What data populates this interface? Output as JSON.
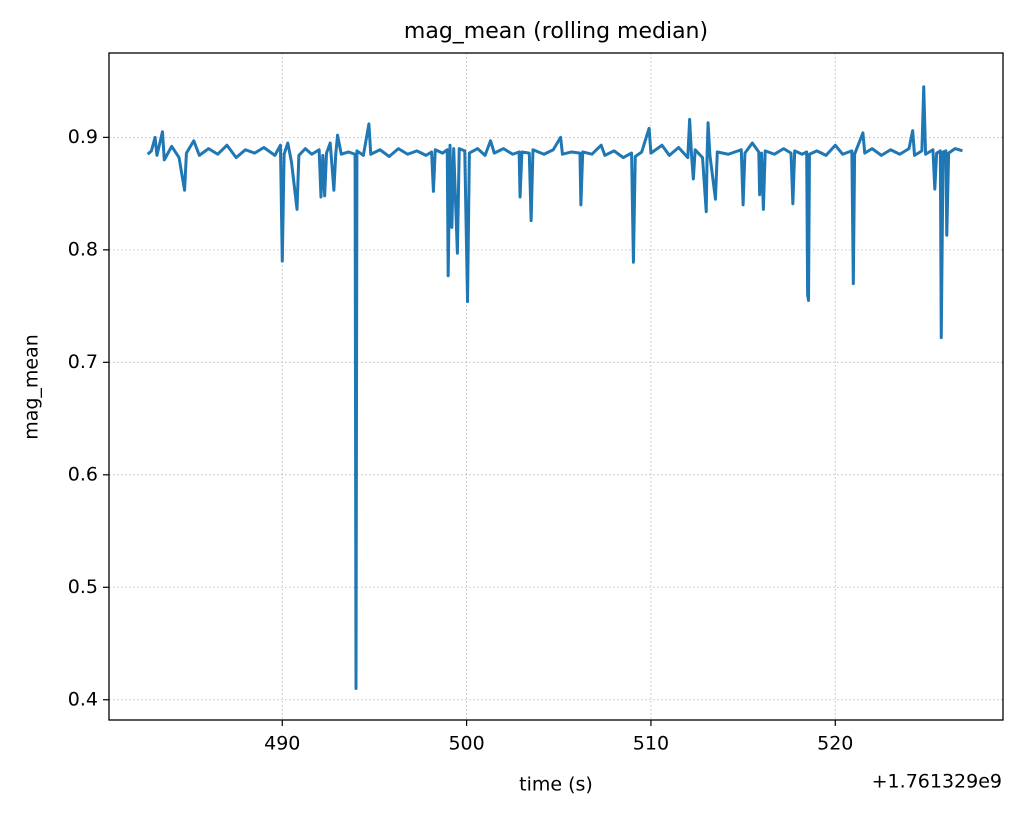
{
  "chart_data": {
    "type": "line",
    "title": "mag_mean (rolling median)",
    "x_label": "time (s)",
    "y_label": "mag_mean",
    "x_offset_text": "+1.761329e9",
    "xlim": [
      480.6,
      529.1
    ],
    "ylim": [
      0.382,
      0.975
    ],
    "xticks": [
      490,
      500,
      510,
      520
    ],
    "yticks": [
      0.4,
      0.5,
      0.6,
      0.7,
      0.8,
      0.9
    ],
    "grid": true,
    "series": [
      {
        "color": "#1f77b4",
        "x": [
          482.7,
          482.9,
          483.1,
          483.2,
          483.5,
          483.6,
          484.0,
          484.4,
          484.7,
          484.8,
          485.2,
          485.5,
          486.0,
          486.5,
          487.0,
          487.5,
          488.0,
          488.5,
          489.0,
          489.6,
          489.9,
          490.0,
          490.1,
          490.3,
          490.5,
          490.8,
          490.9,
          491.25,
          491.6,
          492.0,
          492.1,
          492.2,
          492.3,
          492.4,
          492.6,
          492.8,
          492.9,
          493.0,
          493.2,
          493.6,
          493.95,
          494.0,
          494.05,
          494.4,
          494.7,
          494.8,
          495.3,
          495.8,
          496.3,
          496.8,
          497.3,
          497.8,
          498.1,
          498.2,
          498.3,
          498.7,
          498.95,
          499.0,
          499.1,
          499.2,
          499.3,
          499.5,
          499.6,
          499.9,
          500.05,
          500.15,
          500.6,
          501.0,
          501.3,
          501.5,
          502.0,
          502.5,
          502.85,
          502.9,
          503.0,
          503.4,
          503.5,
          503.6,
          504.2,
          504.7,
          505.1,
          505.2,
          505.7,
          506.15,
          506.2,
          506.3,
          506.8,
          507.3,
          507.5,
          508.0,
          508.5,
          508.95,
          509.05,
          509.15,
          509.5,
          509.9,
          510.0,
          510.6,
          511.0,
          511.5,
          512.0,
          512.1,
          512.2,
          512.3,
          512.4,
          512.8,
          513.0,
          513.05,
          513.1,
          513.2,
          513.5,
          513.6,
          514.2,
          514.9,
          515.0,
          515.1,
          515.5,
          515.85,
          515.9,
          516.0,
          516.1,
          516.2,
          516.7,
          517.2,
          517.6,
          517.7,
          517.8,
          518.2,
          518.45,
          518.5,
          518.55,
          518.6,
          519.0,
          519.5,
          520.0,
          520.4,
          520.9,
          520.98,
          521.05,
          521.5,
          521.6,
          522.0,
          522.5,
          523.0,
          523.5,
          524.0,
          524.2,
          524.3,
          524.7,
          524.8,
          524.9,
          525.3,
          525.4,
          525.5,
          525.7,
          525.75,
          525.85,
          526.0,
          526.05,
          526.15,
          526.5,
          526.9
        ],
        "values": [
          0.885,
          0.888,
          0.9,
          0.884,
          0.905,
          0.88,
          0.892,
          0.882,
          0.853,
          0.886,
          0.897,
          0.884,
          0.89,
          0.885,
          0.893,
          0.882,
          0.889,
          0.886,
          0.891,
          0.884,
          0.893,
          0.79,
          0.885,
          0.895,
          0.878,
          0.836,
          0.884,
          0.89,
          0.885,
          0.889,
          0.847,
          0.884,
          0.848,
          0.886,
          0.895,
          0.853,
          0.885,
          0.902,
          0.885,
          0.887,
          0.885,
          0.41,
          0.888,
          0.884,
          0.912,
          0.885,
          0.889,
          0.883,
          0.89,
          0.885,
          0.888,
          0.884,
          0.887,
          0.852,
          0.889,
          0.886,
          0.889,
          0.777,
          0.893,
          0.82,
          0.89,
          0.797,
          0.89,
          0.888,
          0.754,
          0.886,
          0.89,
          0.884,
          0.897,
          0.886,
          0.89,
          0.885,
          0.887,
          0.847,
          0.887,
          0.886,
          0.826,
          0.889,
          0.885,
          0.889,
          0.9,
          0.885,
          0.887,
          0.886,
          0.84,
          0.887,
          0.885,
          0.893,
          0.884,
          0.888,
          0.882,
          0.886,
          0.789,
          0.883,
          0.887,
          0.908,
          0.886,
          0.893,
          0.884,
          0.891,
          0.882,
          0.916,
          0.885,
          0.863,
          0.889,
          0.882,
          0.834,
          0.886,
          0.913,
          0.884,
          0.845,
          0.887,
          0.885,
          0.889,
          0.84,
          0.886,
          0.895,
          0.887,
          0.849,
          0.886,
          0.836,
          0.888,
          0.885,
          0.89,
          0.886,
          0.841,
          0.888,
          0.885,
          0.887,
          0.76,
          0.755,
          0.885,
          0.888,
          0.884,
          0.893,
          0.885,
          0.888,
          0.77,
          0.885,
          0.904,
          0.886,
          0.89,
          0.884,
          0.889,
          0.885,
          0.89,
          0.906,
          0.884,
          0.888,
          0.945,
          0.885,
          0.889,
          0.854,
          0.886,
          0.888,
          0.722,
          0.887,
          0.888,
          0.813,
          0.886,
          0.89,
          0.888
        ]
      }
    ]
  }
}
